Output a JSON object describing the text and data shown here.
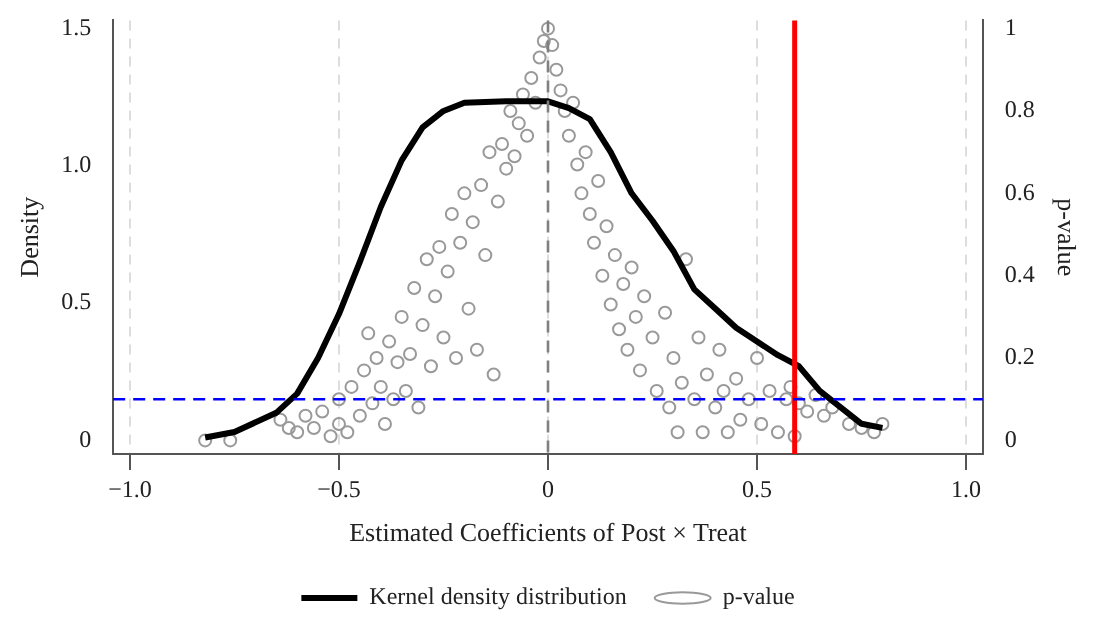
{
  "chart_data": {
    "type": "scatter",
    "xlabel": "Estimated Coefficients of Post × Treat",
    "ylabel": "Density",
    "y2label": "p-value",
    "xlim": [
      -1.04,
      1.04
    ],
    "xticks": [
      {
        "value": -1,
        "label": "−1.0"
      },
      {
        "value": -0.5,
        "label": "−0.5"
      },
      0,
      0.5,
      {
        "value": 1,
        "label": "1.0"
      }
    ],
    "ylim": [
      -0.05,
      1.53
    ],
    "yticks": [
      0,
      0.5,
      {
        "value": 1,
        "label": "1.0"
      },
      1.5
    ],
    "y2lim": [
      -0.033,
      1.02
    ],
    "y2ticks": [
      0,
      0.2,
      0.4,
      0.6,
      0.8,
      1
    ],
    "grid": "x",
    "legend": "bottom",
    "marker": "circle",
    "series": [
      {
        "name": "Kernel density distribution",
        "type": "line",
        "color": "#000000",
        "line_style": "solid",
        "marker": "none",
        "x": [
          -0.82,
          -0.75,
          -0.65,
          -0.6,
          -0.55,
          -0.5,
          -0.45,
          -0.4,
          -0.35,
          -0.3,
          -0.25,
          -0.2,
          -0.1,
          0,
          0.05,
          0.1,
          0.15,
          0.2,
          0.25,
          0.3,
          0.35,
          0.4,
          0.45,
          0.5,
          0.55,
          0.6,
          0.65,
          0.7,
          0.75,
          0.8
        ],
        "values": [
          0.01,
          0.03,
          0.1,
          0.17,
          0.3,
          0.46,
          0.65,
          0.85,
          1.02,
          1.14,
          1.2,
          1.23,
          1.235,
          1.235,
          1.21,
          1.17,
          1.05,
          0.9,
          0.8,
          0.69,
          0.55,
          0.48,
          0.41,
          0.36,
          0.31,
          0.27,
          0.18,
          0.12,
          0.06,
          0.045
        ]
      },
      {
        "name": "p-value",
        "type": "scatter",
        "axis": "y2",
        "color": "#999999",
        "x": [
          -0.82,
          -0.76,
          -0.64,
          -0.62,
          -0.6,
          -0.58,
          -0.56,
          -0.54,
          -0.52,
          -0.5,
          -0.5,
          -0.48,
          -0.47,
          -0.45,
          -0.44,
          -0.43,
          -0.42,
          -0.41,
          -0.4,
          -0.39,
          -0.38,
          -0.37,
          -0.36,
          -0.35,
          -0.34,
          -0.33,
          -0.32,
          -0.31,
          -0.3,
          -0.29,
          -0.28,
          -0.27,
          -0.26,
          -0.25,
          -0.24,
          -0.23,
          -0.22,
          -0.21,
          -0.2,
          -0.19,
          -0.18,
          -0.17,
          -0.16,
          -0.15,
          -0.14,
          -0.13,
          -0.12,
          -0.11,
          -0.1,
          -0.09,
          -0.08,
          -0.07,
          -0.06,
          -0.05,
          -0.04,
          -0.03,
          -0.02,
          -0.01,
          0,
          0.01,
          0.02,
          0.03,
          0.04,
          0.05,
          0.06,
          0.07,
          0.08,
          0.09,
          0.1,
          0.11,
          0.12,
          0.13,
          0.14,
          0.15,
          0.16,
          0.17,
          0.18,
          0.19,
          0.2,
          0.21,
          0.22,
          0.23,
          0.25,
          0.26,
          0.28,
          0.29,
          0.3,
          0.31,
          0.32,
          0.33,
          0.35,
          0.36,
          0.37,
          0.38,
          0.4,
          0.41,
          0.42,
          0.43,
          0.45,
          0.46,
          0.48,
          0.5,
          0.51,
          0.53,
          0.55,
          0.57,
          0.58,
          0.59,
          0.6,
          0.62,
          0.64,
          0.66,
          0.68,
          0.72,
          0.75,
          0.78,
          0.8
        ],
        "values": [
          0,
          0,
          0.05,
          0.03,
          0.02,
          0.06,
          0.03,
          0.07,
          0.01,
          0.04,
          0.1,
          0.02,
          0.13,
          0.06,
          0.17,
          0.26,
          0.09,
          0.2,
          0.13,
          0.04,
          0.24,
          0.1,
          0.19,
          0.3,
          0.12,
          0.21,
          0.37,
          0.08,
          0.28,
          0.44,
          0.18,
          0.35,
          0.47,
          0.25,
          0.41,
          0.55,
          0.2,
          0.48,
          0.6,
          0.32,
          0.53,
          0.22,
          0.62,
          0.45,
          0.7,
          0.16,
          0.58,
          0.72,
          0.66,
          0.8,
          0.69,
          0.77,
          0.84,
          0.74,
          0.88,
          0.82,
          0.93,
          0.97,
          1,
          0.96,
          0.9,
          0.85,
          0.8,
          0.74,
          0.82,
          0.67,
          0.6,
          0.7,
          0.55,
          0.48,
          0.63,
          0.4,
          0.52,
          0.33,
          0.45,
          0.27,
          0.38,
          0.22,
          0.42,
          0.3,
          0.17,
          0.35,
          0.25,
          0.12,
          0.31,
          0.08,
          0.2,
          0.02,
          0.14,
          0.44,
          0.1,
          0.25,
          0.02,
          0.16,
          0.08,
          0.22,
          0.12,
          0.02,
          0.15,
          0.05,
          0.1,
          0.2,
          0.04,
          0.12,
          0.02,
          0.1,
          0.13,
          0.01,
          0.09,
          0.07,
          0.11,
          0.06,
          0.08,
          0.04,
          0.03,
          0.02,
          0.04
        ]
      }
    ],
    "ref_lines": [
      {
        "axis": "x",
        "value": 0,
        "color": "#808080",
        "line_style": "dashed"
      },
      {
        "axis": "x",
        "value": 0.59,
        "color": "#ff0000",
        "line_style": "solid"
      },
      {
        "axis": "y2",
        "value": 0.1,
        "color": "#0000ff",
        "line_style": "dashed"
      }
    ]
  }
}
